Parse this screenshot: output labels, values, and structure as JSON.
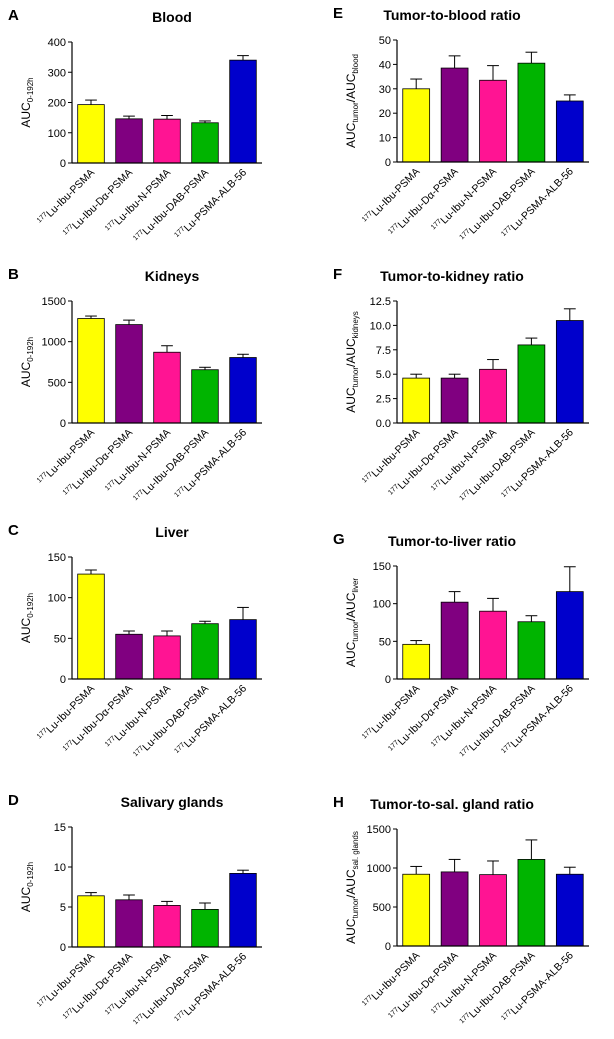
{
  "chart_data": [
    {
      "panel": "A",
      "type": "bar",
      "title": "Blood",
      "ylabel": {
        "main": "AUC",
        "sub": "0-192h"
      },
      "ylim": [
        0,
        400
      ],
      "yticks": [
        0,
        100,
        200,
        300,
        400
      ],
      "yticklabels": [
        "0",
        "100",
        "200",
        "300",
        "400"
      ],
      "categories": [
        {
          "sup": "177",
          "text": "Lu-Ibu-PSMA"
        },
        {
          "sup": "177",
          "text": "Lu-Ibu-Dα-PSMA"
        },
        {
          "sup": "177",
          "text": "Lu-Ibu-N-PSMA"
        },
        {
          "sup": "177",
          "text": "Lu-Ibu-DAB-PSMA"
        },
        {
          "sup": "177",
          "text": "Lu-PSMA-ALB-56"
        }
      ],
      "values": [
        193,
        146,
        145,
        133,
        340
      ],
      "errors": [
        15,
        9,
        12,
        6,
        15
      ],
      "colors": [
        "#ffff00",
        "#800080",
        "#ff1493",
        "#00b400",
        "#0000cc"
      ]
    },
    {
      "panel": "E",
      "type": "bar",
      "title": "Tumor-to-blood ratio",
      "ylabel": {
        "main": "AUC",
        "sub1": "tumor",
        "mid": "/AUC",
        "sub2": "blood"
      },
      "ylim": [
        0,
        50
      ],
      "yticks": [
        0,
        10,
        20,
        30,
        40,
        50
      ],
      "yticklabels": [
        "0",
        "10",
        "20",
        "30",
        "40",
        "50"
      ],
      "categories": [
        {
          "sup": "177",
          "text": "Lu-Ibu-PSMA"
        },
        {
          "sup": "177",
          "text": "Lu-Ibu-Dα-PSMA"
        },
        {
          "sup": "177",
          "text": "Lu-Ibu-N-PSMA"
        },
        {
          "sup": "177",
          "text": "Lu-Ibu-DAB-PSMA"
        },
        {
          "sup": "177",
          "text": "Lu-PSMA-ALB-56"
        }
      ],
      "values": [
        30,
        38.5,
        33.5,
        40.5,
        25
      ],
      "errors": [
        4,
        5,
        6,
        4.5,
        2.5
      ],
      "colors": [
        "#ffff00",
        "#800080",
        "#ff1493",
        "#00b400",
        "#0000cc"
      ]
    },
    {
      "panel": "B",
      "type": "bar",
      "title": "Kidneys",
      "ylabel": {
        "main": "AUC",
        "sub": "0-192h"
      },
      "ylim": [
        0,
        1500
      ],
      "yticks": [
        0,
        500,
        1000,
        1500
      ],
      "yticklabels": [
        "0",
        "500",
        "1000",
        "1500"
      ],
      "categories": [
        {
          "sup": "177",
          "text": "Lu-Ibu-PSMA"
        },
        {
          "sup": "177",
          "text": "Lu-Ibu-Dα-PSMA"
        },
        {
          "sup": "177",
          "text": "Lu-Ibu-N-PSMA"
        },
        {
          "sup": "177",
          "text": "Lu-Ibu-DAB-PSMA"
        },
        {
          "sup": "177",
          "text": "Lu-PSMA-ALB-56"
        }
      ],
      "values": [
        1285,
        1210,
        870,
        655,
        805
      ],
      "errors": [
        30,
        55,
        80,
        30,
        40
      ],
      "colors": [
        "#ffff00",
        "#800080",
        "#ff1493",
        "#00b400",
        "#0000cc"
      ]
    },
    {
      "panel": "F",
      "type": "bar",
      "title": "Tumor-to-kidney ratio",
      "ylabel": {
        "main": "AUC",
        "sub1": "tumor",
        "mid": "/AUC",
        "sub2": "kidneys"
      },
      "ylim": [
        0,
        12.5
      ],
      "yticks": [
        0,
        2.5,
        5,
        7.5,
        10,
        12.5
      ],
      "yticklabels": [
        "0.0",
        "2.5",
        "5.0",
        "7.5",
        "10.0",
        "12.5"
      ],
      "categories": [
        {
          "sup": "177",
          "text": "Lu-Ibu-PSMA"
        },
        {
          "sup": "177",
          "text": "Lu-Ibu-Dα-PSMA"
        },
        {
          "sup": "177",
          "text": "Lu-Ibu-N-PSMA"
        },
        {
          "sup": "177",
          "text": "Lu-Ibu-DAB-PSMA"
        },
        {
          "sup": "177",
          "text": "Lu-PSMA-ALB-56"
        }
      ],
      "values": [
        4.6,
        4.6,
        5.5,
        8.0,
        10.5
      ],
      "errors": [
        0.4,
        0.4,
        1.0,
        0.7,
        1.2
      ],
      "colors": [
        "#ffff00",
        "#800080",
        "#ff1493",
        "#00b400",
        "#0000cc"
      ]
    },
    {
      "panel": "C",
      "type": "bar",
      "title": "Liver",
      "ylabel": {
        "main": "AUC",
        "sub": "0-192h"
      },
      "ylim": [
        0,
        150
      ],
      "yticks": [
        0,
        50,
        100,
        150
      ],
      "yticklabels": [
        "0",
        "50",
        "100",
        "150"
      ],
      "categories": [
        {
          "sup": "177",
          "text": "Lu-Ibu-PSMA"
        },
        {
          "sup": "177",
          "text": "Lu-Ibu-Dα-PSMA"
        },
        {
          "sup": "177",
          "text": "Lu-Ibu-N-PSMA"
        },
        {
          "sup": "177",
          "text": "Lu-Ibu-DAB-PSMA"
        },
        {
          "sup": "177",
          "text": "Lu-PSMA-ALB-56"
        }
      ],
      "values": [
        129,
        55,
        53,
        68,
        73
      ],
      "errors": [
        5,
        4,
        6,
        3,
        15
      ],
      "colors": [
        "#ffff00",
        "#800080",
        "#ff1493",
        "#00b400",
        "#0000cc"
      ]
    },
    {
      "panel": "G",
      "type": "bar",
      "title": "Tumor-to-liver ratio",
      "ylabel": {
        "main": "AUC",
        "sub1": "tumor",
        "mid": "/AUC",
        "sub2": "liver"
      },
      "ylim": [
        0,
        150
      ],
      "yticks": [
        0,
        50,
        100,
        150
      ],
      "yticklabels": [
        "0",
        "50",
        "100",
        "150"
      ],
      "categories": [
        {
          "sup": "177",
          "text": "Lu-Ibu-PSMA"
        },
        {
          "sup": "177",
          "text": "Lu-Ibu-Dα-PSMA"
        },
        {
          "sup": "177",
          "text": "Lu-Ibu-N-PSMA"
        },
        {
          "sup": "177",
          "text": "Lu-Ibu-DAB-PSMA"
        },
        {
          "sup": "177",
          "text": "Lu-PSMA-ALB-56"
        }
      ],
      "values": [
        46,
        102,
        90,
        76,
        116
      ],
      "errors": [
        5,
        14,
        17,
        8,
        33
      ],
      "colors": [
        "#ffff00",
        "#800080",
        "#ff1493",
        "#00b400",
        "#0000cc"
      ]
    },
    {
      "panel": "D",
      "type": "bar",
      "title": "Salivary glands",
      "ylabel": {
        "main": "AUC",
        "sub": "0-192h"
      },
      "ylim": [
        0,
        15
      ],
      "yticks": [
        0,
        5,
        10,
        15
      ],
      "yticklabels": [
        "0",
        "5",
        "10",
        "15"
      ],
      "categories": [
        {
          "sup": "177",
          "text": "Lu-Ibu-PSMA"
        },
        {
          "sup": "177",
          "text": "Lu-Ibu-Dα-PSMA"
        },
        {
          "sup": "177",
          "text": "Lu-Ibu-N-PSMA"
        },
        {
          "sup": "177",
          "text": "Lu-Ibu-DAB-PSMA"
        },
        {
          "sup": "177",
          "text": "Lu-PSMA-ALB-56"
        }
      ],
      "values": [
        6.4,
        5.9,
        5.2,
        4.7,
        9.2
      ],
      "errors": [
        0.4,
        0.6,
        0.5,
        0.8,
        0.4
      ],
      "colors": [
        "#ffff00",
        "#800080",
        "#ff1493",
        "#00b400",
        "#0000cc"
      ]
    },
    {
      "panel": "H",
      "type": "bar",
      "title": "Tumor-to-sal. gland ratio",
      "ylabel": {
        "main": "AUC",
        "sub1": "tumor",
        "mid": "/AUC",
        "sub2": "sal. glands"
      },
      "ylim": [
        0,
        1500
      ],
      "yticks": [
        0,
        500,
        1000,
        1500
      ],
      "yticklabels": [
        "0",
        "500",
        "1000",
        "1500"
      ],
      "categories": [
        {
          "sup": "177",
          "text": "Lu-Ibu-PSMA"
        },
        {
          "sup": "177",
          "text": "Lu-Ibu-Dα-PSMA"
        },
        {
          "sup": "177",
          "text": "Lu-Ibu-N-PSMA"
        },
        {
          "sup": "177",
          "text": "Lu-Ibu-DAB-PSMA"
        },
        {
          "sup": "177",
          "text": "Lu-PSMA-ALB-56"
        }
      ],
      "values": [
        920,
        950,
        915,
        1110,
        920
      ],
      "errors": [
        100,
        160,
        175,
        250,
        90
      ],
      "colors": [
        "#ffff00",
        "#800080",
        "#ff1493",
        "#00b400",
        "#0000cc"
      ]
    }
  ]
}
